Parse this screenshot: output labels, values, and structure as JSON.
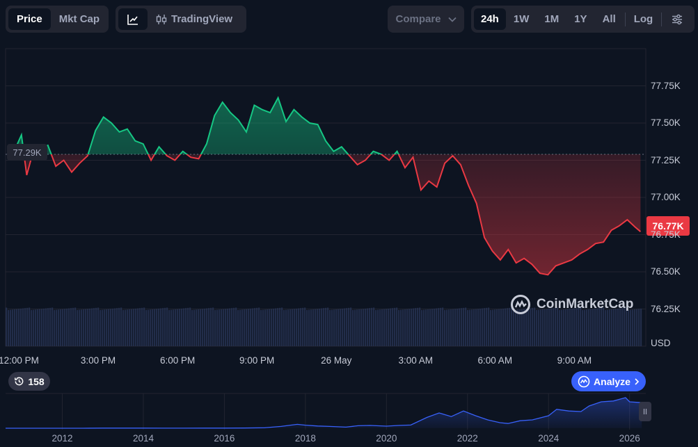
{
  "toolbar": {
    "price_label": "Price",
    "mktcap_label": "Mkt Cap",
    "tradingview_label": "TradingView",
    "compare_label": "Compare",
    "ranges": [
      "24h",
      "1W",
      "1M",
      "1Y",
      "All"
    ],
    "active_range": "24h",
    "log_label": "Log"
  },
  "watermark": "CoinMarketCap",
  "history_count": "158",
  "analyze_label": "Analyze",
  "colors": {
    "up": "#16c784",
    "down": "#ea3943",
    "accent": "#3861fb",
    "bg": "#0d1421"
  },
  "chart_data": {
    "type": "line",
    "currency_label": "USD",
    "open_value": 77290,
    "open_label": "77.29K",
    "last_value": 76770,
    "last_label": "76.77K",
    "ylim": [
      76000,
      78000
    ],
    "yticks": [
      {
        "value": 77750,
        "label": "77.75K"
      },
      {
        "value": 77500,
        "label": "77.50K"
      },
      {
        "value": 77250,
        "label": "77.25K"
      },
      {
        "value": 77000,
        "label": "77.00K"
      },
      {
        "value": 76750,
        "label": "76.75K"
      },
      {
        "value": 76500,
        "label": "76.50K"
      },
      {
        "value": 76250,
        "label": "76.25K"
      }
    ],
    "xlim": [
      11.5,
      35.7
    ],
    "xticks": [
      {
        "value": 12,
        "label": "12:00 PM"
      },
      {
        "value": 15,
        "label": "3:00 PM"
      },
      {
        "value": 18,
        "label": "6:00 PM"
      },
      {
        "value": 21,
        "label": "9:00 PM"
      },
      {
        "value": 24,
        "label": "26 May"
      },
      {
        "value": 27,
        "label": "3:00 AM"
      },
      {
        "value": 30,
        "label": "6:00 AM"
      },
      {
        "value": 33,
        "label": "9:00 AM"
      }
    ],
    "x": [
      11.6,
      11.9,
      12.1,
      12.3,
      12.5,
      12.8,
      13.1,
      13.4,
      13.7,
      14.0,
      14.3,
      14.6,
      14.9,
      15.2,
      15.5,
      15.8,
      16.1,
      16.4,
      16.7,
      17.0,
      17.3,
      17.6,
      17.9,
      18.2,
      18.5,
      18.8,
      19.1,
      19.4,
      19.7,
      20.0,
      20.3,
      20.6,
      20.9,
      21.2,
      21.5,
      21.8,
      22.1,
      22.4,
      22.7,
      23.0,
      23.3,
      23.6,
      23.9,
      24.2,
      24.5,
      24.8,
      25.1,
      25.4,
      25.7,
      26.0,
      26.3,
      26.6,
      26.9,
      27.2,
      27.5,
      27.8,
      28.1,
      28.4,
      28.7,
      29.0,
      29.3,
      29.6,
      29.9,
      30.2,
      30.5,
      30.8,
      31.1,
      31.4,
      31.7,
      32.0,
      32.3,
      32.6,
      32.9,
      33.2,
      33.5,
      33.8,
      34.1,
      34.4,
      34.7,
      35.0,
      35.3,
      35.5
    ],
    "values": [
      77290,
      77340,
      77420,
      77150,
      77280,
      77330,
      77350,
      77210,
      77250,
      77170,
      77230,
      77280,
      77450,
      77540,
      77500,
      77440,
      77460,
      77380,
      77360,
      77250,
      77340,
      77280,
      77250,
      77310,
      77270,
      77260,
      77360,
      77550,
      77640,
      77570,
      77520,
      77440,
      77620,
      77590,
      77570,
      77670,
      77510,
      77590,
      77540,
      77500,
      77490,
      77380,
      77310,
      77340,
      77280,
      77220,
      77250,
      77310,
      77290,
      77250,
      77310,
      77200,
      77270,
      77050,
      77110,
      77070,
      77230,
      77280,
      77220,
      77080,
      76960,
      76730,
      76640,
      76580,
      76650,
      76560,
      76590,
      76550,
      76490,
      76480,
      76540,
      76560,
      76580,
      76620,
      76650,
      76690,
      76700,
      76780,
      76810,
      76850,
      76800,
      76770
    ]
  },
  "navigator": {
    "years": [
      "2012",
      "2014",
      "2016",
      "2018",
      "2020",
      "2022",
      "2024",
      "2026"
    ],
    "year_values": [
      2012,
      2014,
      2016,
      2018,
      2020,
      2022,
      2024,
      2026
    ],
    "xlim": [
      2010.6,
      2026.4
    ],
    "x": [
      2010.6,
      2011,
      2011.5,
      2012,
      2012.5,
      2013,
      2013.5,
      2014,
      2014.5,
      2015,
      2015.5,
      2016,
      2016.5,
      2017,
      2017.4,
      2017.8,
      2018,
      2018.3,
      2018.6,
      2019,
      2019.3,
      2019.6,
      2020,
      2020.3,
      2020.6,
      2021,
      2021.3,
      2021.6,
      2021.9,
      2022.2,
      2022.5,
      2022.8,
      2023,
      2023.3,
      2023.6,
      2024,
      2024.2,
      2024.5,
      2024.8,
      2025,
      2025.3,
      2025.6,
      2025.9,
      2026,
      2026.3
    ],
    "values": [
      0,
      0,
      0,
      0,
      0,
      0.5,
      0.5,
      0.4,
      0.3,
      0.3,
      0.4,
      0.5,
      0.7,
      1.8,
      6.5,
      14,
      11,
      8,
      6.5,
      4,
      9,
      10,
      7.5,
      10,
      11.5,
      39,
      55,
      42,
      62,
      45,
      30,
      20,
      17,
      27,
      30,
      45,
      68,
      62,
      60,
      80,
      95,
      98,
      110,
      95,
      92
    ]
  }
}
